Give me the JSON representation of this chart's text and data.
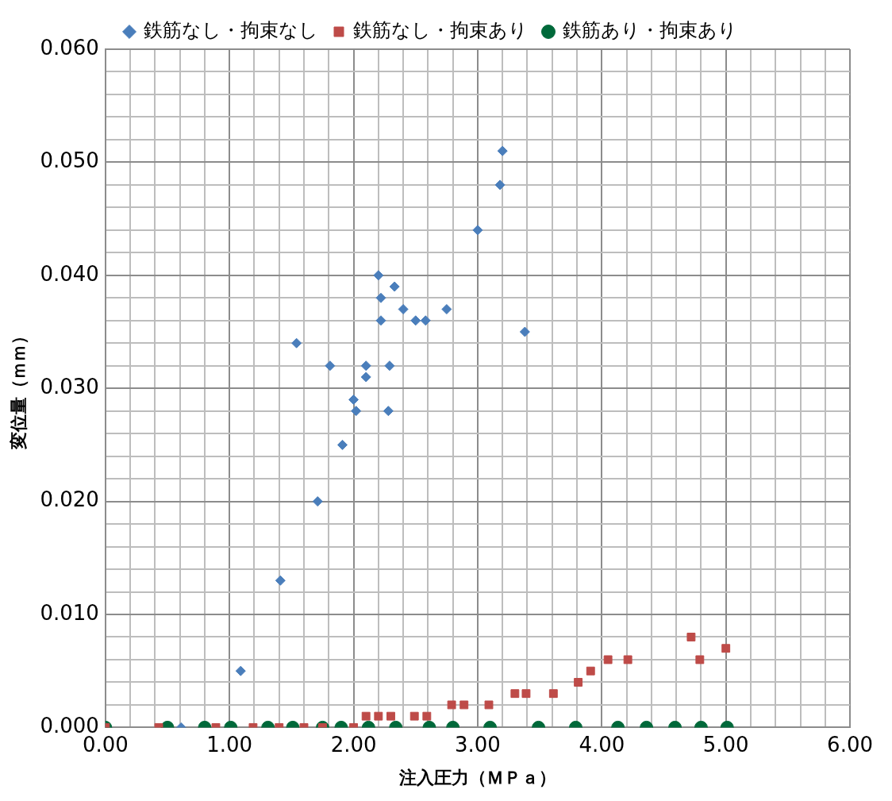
{
  "chart_data": {
    "type": "scatter",
    "xlabel": "注入圧力（ＭＰａ）",
    "ylabel": "変位量（ｍｍ）",
    "legend": "top",
    "grid": true,
    "xlim": [
      0,
      6
    ],
    "ylim": [
      0,
      0.06
    ],
    "xticks": [
      {
        "value": 0,
        "label": "0.00"
      },
      {
        "value": 0.2,
        "label": null
      },
      {
        "value": 0.4,
        "label": null
      },
      {
        "value": 0.6,
        "label": null
      },
      {
        "value": 0.8,
        "label": null
      },
      {
        "value": 1,
        "label": "1.00"
      },
      {
        "value": 1.2,
        "label": null
      },
      {
        "value": 1.4,
        "label": null
      },
      {
        "value": 1.6,
        "label": null
      },
      {
        "value": 1.8,
        "label": null
      },
      {
        "value": 2,
        "label": "2.00"
      },
      {
        "value": 2.2,
        "label": null
      },
      {
        "value": 2.4,
        "label": null
      },
      {
        "value": 2.6,
        "label": null
      },
      {
        "value": 2.8,
        "label": null
      },
      {
        "value": 3,
        "label": "3.00"
      },
      {
        "value": 3.2,
        "label": null
      },
      {
        "value": 3.4,
        "label": null
      },
      {
        "value": 3.6,
        "label": null
      },
      {
        "value": 3.8,
        "label": null
      },
      {
        "value": 4,
        "label": "4.00"
      },
      {
        "value": 4.2,
        "label": null
      },
      {
        "value": 4.4,
        "label": null
      },
      {
        "value": 4.6,
        "label": null
      },
      {
        "value": 4.8,
        "label": null
      },
      {
        "value": 5,
        "label": "5.00"
      },
      {
        "value": 5.2,
        "label": null
      },
      {
        "value": 5.4,
        "label": null
      },
      {
        "value": 5.6,
        "label": null
      },
      {
        "value": 5.8,
        "label": null
      },
      {
        "value": 6,
        "label": "6.00"
      }
    ],
    "yticks": [
      {
        "value": 0,
        "label": "0.000"
      },
      {
        "value": 0.002,
        "label": null
      },
      {
        "value": 0.004,
        "label": null
      },
      {
        "value": 0.006,
        "label": null
      },
      {
        "value": 0.008,
        "label": null
      },
      {
        "value": 0.01,
        "label": "0.010"
      },
      {
        "value": 0.012,
        "label": null
      },
      {
        "value": 0.014,
        "label": null
      },
      {
        "value": 0.016,
        "label": null
      },
      {
        "value": 0.018,
        "label": null
      },
      {
        "value": 0.02,
        "label": "0.020"
      },
      {
        "value": 0.022,
        "label": null
      },
      {
        "value": 0.024,
        "label": null
      },
      {
        "value": 0.026,
        "label": null
      },
      {
        "value": 0.028,
        "label": null
      },
      {
        "value": 0.03,
        "label": "0.030"
      },
      {
        "value": 0.032,
        "label": null
      },
      {
        "value": 0.034,
        "label": null
      },
      {
        "value": 0.036,
        "label": null
      },
      {
        "value": 0.038,
        "label": null
      },
      {
        "value": 0.04,
        "label": "0.040"
      },
      {
        "value": 0.042,
        "label": null
      },
      {
        "value": 0.044,
        "label": null
      },
      {
        "value": 0.046,
        "label": null
      },
      {
        "value": 0.048,
        "label": null
      },
      {
        "value": 0.05,
        "label": "0.050"
      },
      {
        "value": 0.052,
        "label": null
      },
      {
        "value": 0.054,
        "label": null
      },
      {
        "value": 0.056,
        "label": null
      },
      {
        "value": 0.058,
        "label": null
      },
      {
        "value": 0.06,
        "label": "0.060"
      }
    ],
    "series": [
      {
        "name": "鉄筋なし・拘束なし",
        "color": "#4a7ebb",
        "marker": "diamond",
        "x": [
          1.09,
          0.61,
          1.41,
          1.54,
          1.71,
          1.81,
          1.91,
          2.0,
          2.02,
          2.1,
          2.1,
          2.2,
          2.22,
          2.22,
          2.29,
          2.28,
          2.33,
          2.4,
          2.5,
          2.58,
          2.75,
          3.0,
          3.18,
          3.2,
          3.38
        ],
        "values": [
          0.005,
          0,
          0.013,
          0.034,
          0.02,
          0.032,
          0.025,
          0.029,
          0.028,
          0.032,
          0.031,
          0.04,
          0.038,
          0.036,
          0.032,
          0.028,
          0.039,
          0.037,
          0.036,
          0.036,
          0.037,
          0.044,
          0.048,
          0.051,
          0.035
        ]
      },
      {
        "name": "鉄筋なし・拘束あり",
        "color": "#be4b48",
        "marker": "square",
        "x": [
          0,
          0.43,
          0.89,
          1.19,
          1.4,
          1.6,
          1.75,
          2.0,
          2.1,
          2.2,
          2.3,
          2.49,
          2.59,
          2.79,
          2.89,
          3.09,
          3.3,
          3.39,
          3.61,
          3.81,
          3.91,
          4.05,
          4.21,
          4.72,
          4.79,
          5.0
        ],
        "values": [
          0,
          0,
          0,
          0,
          0,
          0,
          0,
          0,
          0.001,
          0.001,
          0.001,
          0.001,
          0.001,
          0.002,
          0.002,
          0.002,
          0.003,
          0.003,
          0.003,
          0.004,
          0.005,
          0.006,
          0.006,
          0.008,
          0.006,
          0.007
        ]
      },
      {
        "name": "鉄筋あり・拘束あり",
        "color": "#00693a",
        "marker": "circle",
        "x": [
          0,
          0.5,
          0.8,
          1.01,
          1.31,
          1.51,
          1.75,
          1.9,
          2.12,
          2.34,
          2.61,
          2.8,
          3.1,
          3.49,
          3.79,
          4.13,
          4.36,
          4.59,
          4.8,
          5.01
        ],
        "values": [
          0,
          0,
          0,
          0,
          0,
          0,
          0,
          0,
          0,
          0,
          0,
          0,
          0,
          0,
          0,
          0,
          0,
          0,
          0,
          0
        ]
      }
    ]
  }
}
